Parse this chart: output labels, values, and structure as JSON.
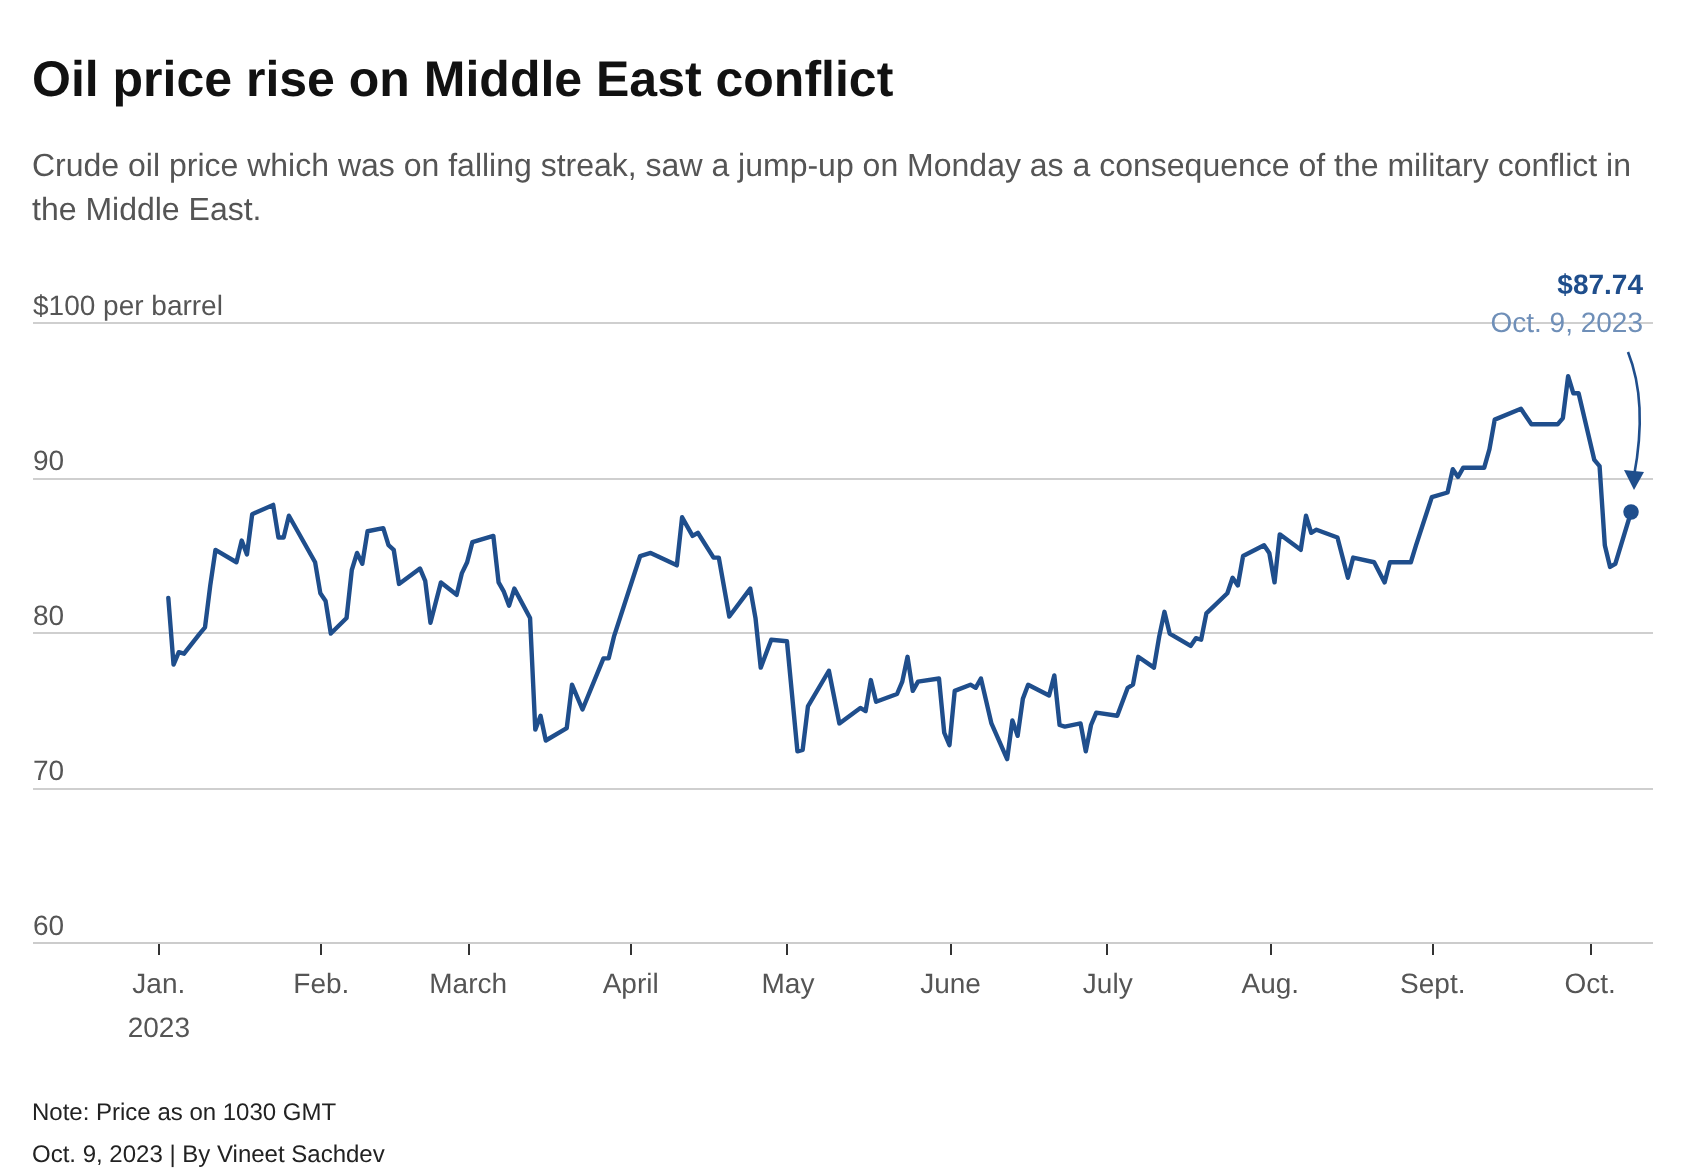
{
  "chart_data": {
    "type": "line",
    "title": "Oil price rise on Middle East conflict",
    "subtitle": "Crude oil price which was on falling streak, saw a jump-up on Monday as a consequence of the military conflict in the Middle East.",
    "annotations": [
      "$87.74",
      "Oct. 9, 2023",
      "Note: Price as on 1030 GMT",
      "Oct. 9, 2023 | By Vineet Sachdev"
    ],
    "x": [
      "2023-01-03",
      "2023-01-04",
      "2023-01-05",
      "2023-01-06",
      "2023-01-09",
      "2023-01-10",
      "2023-01-11",
      "2023-01-12",
      "2023-01-16",
      "2023-01-17",
      "2023-01-18",
      "2023-01-19",
      "2023-01-23",
      "2023-01-24",
      "2023-01-25",
      "2023-01-26",
      "2023-01-31",
      "2023-02-01",
      "2023-02-02",
      "2023-02-03",
      "2023-02-06",
      "2023-02-07",
      "2023-02-08",
      "2023-02-09",
      "2023-02-10",
      "2023-02-13",
      "2023-02-14",
      "2023-02-15",
      "2023-02-16",
      "2023-02-20",
      "2023-02-21",
      "2023-02-22",
      "2023-02-24",
      "2023-02-27",
      "2023-02-28",
      "2023-03-01",
      "2023-03-02",
      "2023-03-06",
      "2023-03-07",
      "2023-03-08",
      "2023-03-09",
      "2023-03-10",
      "2023-03-13",
      "2023-03-14",
      "2023-03-15",
      "2023-03-16",
      "2023-03-20",
      "2023-03-21",
      "2023-03-23",
      "2023-03-27",
      "2023-03-28",
      "2023-03-29",
      "2023-04-03",
      "2023-04-05",
      "2023-04-10",
      "2023-04-11",
      "2023-04-13",
      "2023-04-14",
      "2023-04-17",
      "2023-04-18",
      "2023-04-20",
      "2023-04-24",
      "2023-04-25",
      "2023-04-26",
      "2023-04-28",
      "2023-05-01",
      "2023-05-03",
      "2023-05-04",
      "2023-05-05",
      "2023-05-09",
      "2023-05-11",
      "2023-05-15",
      "2023-05-16",
      "2023-05-17",
      "2023-05-18",
      "2023-05-22",
      "2023-05-23",
      "2023-05-24",
      "2023-05-25",
      "2023-05-26",
      "2023-05-30",
      "2023-05-31",
      "2023-06-01",
      "2023-06-02",
      "2023-06-05",
      "2023-06-06",
      "2023-06-07",
      "2023-06-09",
      "2023-06-12",
      "2023-06-13",
      "2023-06-14",
      "2023-06-15",
      "2023-06-16",
      "2023-06-20",
      "2023-06-21",
      "2023-06-22",
      "2023-06-23",
      "2023-06-26",
      "2023-06-27",
      "2023-06-28",
      "2023-06-29",
      "2023-07-03",
      "2023-07-05",
      "2023-07-06",
      "2023-07-07",
      "2023-07-10",
      "2023-07-11",
      "2023-07-12",
      "2023-07-13",
      "2023-07-17",
      "2023-07-18",
      "2023-07-19",
      "2023-07-20",
      "2023-07-24",
      "2023-07-25",
      "2023-07-26",
      "2023-07-27",
      "2023-07-31",
      "2023-08-01",
      "2023-08-02",
      "2023-08-03",
      "2023-08-07",
      "2023-08-08",
      "2023-08-09",
      "2023-08-10",
      "2023-08-14",
      "2023-08-16",
      "2023-08-17",
      "2023-08-21",
      "2023-08-23",
      "2023-08-24",
      "2023-08-28",
      "2023-08-29",
      "2023-09-01",
      "2023-09-04",
      "2023-09-05",
      "2023-09-06",
      "2023-09-07",
      "2023-09-11",
      "2023-09-12",
      "2023-09-13",
      "2023-09-18",
      "2023-09-20",
      "2023-09-25",
      "2023-09-26",
      "2023-09-27",
      "2023-09-28",
      "2023-09-29",
      "2023-10-02",
      "2023-10-03",
      "2023-10-04",
      "2023-10-05",
      "2023-10-06",
      "2023-10-09"
    ],
    "series": [
      {
        "color": "#1f4e8c",
        "values": [
          82.2,
          77.9,
          78.7,
          78.6,
          79.9,
          80.3,
          83.0,
          85.3,
          84.5,
          85.9,
          85.0,
          87.6,
          88.2,
          86.1,
          86.1,
          87.5,
          84.5,
          82.5,
          82.0,
          79.9,
          80.9,
          84.0,
          85.1,
          84.4,
          86.5,
          86.7,
          85.6,
          85.3,
          83.1,
          84.1,
          83.3,
          80.6,
          83.2,
          82.4,
          83.8,
          84.5,
          85.8,
          86.2,
          83.2,
          82.6,
          81.7,
          82.8,
          80.9,
          73.7,
          74.6,
          73.0,
          73.8,
          76.6,
          75.0,
          78.3,
          78.3,
          79.7,
          84.9,
          85.1,
          84.3,
          87.4,
          86.2,
          86.4,
          84.8,
          84.8,
          81.0,
          82.8,
          80.9,
          77.7,
          79.5,
          79.4,
          72.3,
          72.4,
          75.2,
          77.5,
          74.1,
          75.1,
          74.9,
          76.9,
          75.5,
          76.0,
          76.8,
          78.4,
          76.2,
          76.8,
          77.0,
          73.5,
          72.7,
          76.2,
          76.6,
          76.4,
          77.0,
          74.1,
          71.8,
          74.3,
          73.3,
          75.7,
          76.6,
          75.9,
          77.2,
          74.0,
          73.9,
          74.1,
          72.3,
          74.0,
          74.8,
          74.6,
          76.4,
          76.6,
          78.4,
          77.7,
          79.7,
          81.3,
          79.9,
          79.1,
          79.6,
          79.5,
          81.2,
          82.5,
          83.5,
          83.0,
          84.9,
          85.6,
          85.1,
          83.2,
          86.3,
          85.3,
          87.5,
          86.4,
          86.6,
          86.1,
          83.5,
          84.8,
          84.5,
          83.2,
          84.5,
          84.5,
          85.6,
          88.7,
          89.0,
          90.5,
          90.0,
          90.6,
          90.6,
          91.8,
          93.7,
          94.4,
          93.4,
          93.4,
          93.8,
          96.5,
          95.4,
          95.4,
          91.1,
          90.7,
          85.6,
          84.2,
          84.4,
          87.74
        ]
      }
    ],
    "xlim": [
      "2022-12-08",
      "2023-10-13"
    ],
    "xticks": [
      {
        "value": "2023-01-01",
        "label": "Jan.\n2023"
      },
      {
        "value": "2023-02-01",
        "label": "Feb."
      },
      {
        "value": "2023-03-01",
        "label": "March"
      },
      {
        "value": "2023-04-01",
        "label": "April"
      },
      {
        "value": "2023-05-01",
        "label": "May"
      },
      {
        "value": "2023-06-01",
        "label": "June"
      },
      {
        "value": "2023-07-01",
        "label": "July"
      },
      {
        "value": "2023-08-01",
        "label": "Aug."
      },
      {
        "value": "2023-09-01",
        "label": "Sept."
      },
      {
        "value": "2023-10-01",
        "label": "Oct."
      }
    ],
    "ylim": [
      60,
      100
    ],
    "yticks": [
      60,
      70,
      80,
      90,
      {
        "value": 100,
        "label": "$100 per barrel"
      }
    ],
    "grid": "y"
  }
}
